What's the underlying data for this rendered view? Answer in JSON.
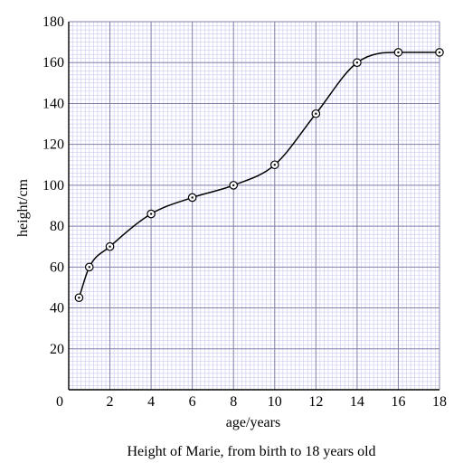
{
  "chart_data": {
    "type": "line",
    "title": "",
    "caption": "Height of Marie, from birth to 18 years old",
    "xlabel": "age/years",
    "ylabel": "height/cm",
    "xlim": [
      0,
      18
    ],
    "ylim": [
      0,
      180
    ],
    "x_ticks": [
      "0",
      "2",
      "4",
      "6",
      "8",
      "10",
      "12",
      "14",
      "16",
      "18"
    ],
    "y_ticks": [
      "20",
      "40",
      "60",
      "80",
      "100",
      "120",
      "140",
      "160",
      "180"
    ],
    "grid": true,
    "smooth_curve": true,
    "point_marker": "circled-dot",
    "series": [
      {
        "x": [
          0.5,
          1,
          2,
          4,
          6,
          8,
          10,
          12,
          14,
          16,
          18
        ],
        "y": [
          45,
          60,
          70,
          86,
          94,
          100,
          110,
          135,
          160,
          165,
          165
        ]
      }
    ],
    "colors": {
      "minor_grid": "#c9c9f2",
      "major_grid": "#8080a8",
      "curve": "#000000",
      "axis": "#000000"
    }
  }
}
